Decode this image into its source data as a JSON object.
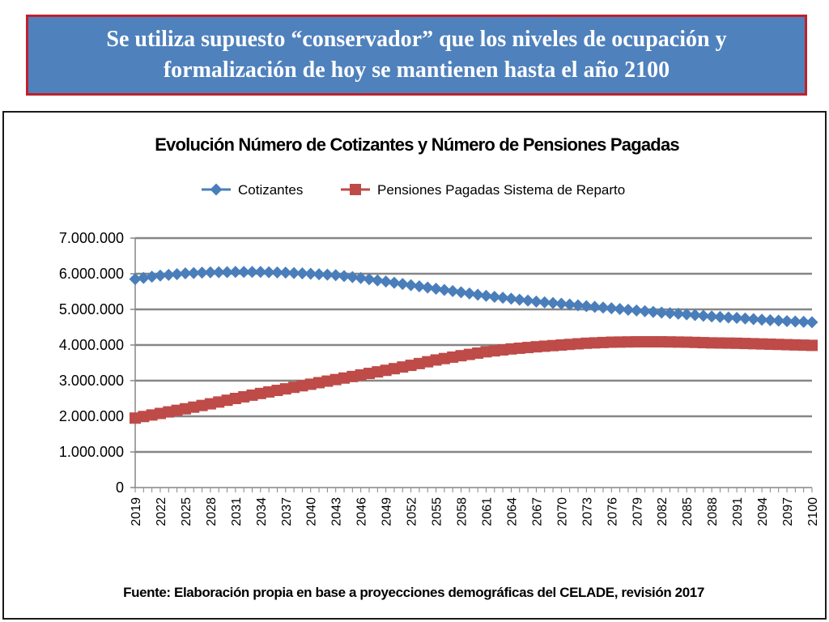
{
  "banner": {
    "text": "Se utiliza supuesto “conservador” que los niveles de ocupación y formalización de hoy se mantienen hasta el año 2100"
  },
  "chart_data": {
    "type": "line",
    "title": "Evolución Número de Cotizantes y Número de Pensiones Pagadas",
    "source": "Fuente: Elaboración propia en base a proyecciones demográficas del CELADE, revisión 2017",
    "ylim": [
      0,
      7000000
    ],
    "yticks": [
      0,
      1000000,
      2000000,
      3000000,
      4000000,
      5000000,
      6000000,
      7000000
    ],
    "ytick_labels": [
      "0",
      "1.000.000",
      "2.000.000",
      "3.000.000",
      "4.000.000",
      "5.000.000",
      "6.000.000",
      "7.000.000"
    ],
    "xlim": [
      2019,
      2100
    ],
    "xticks": [
      2019,
      2022,
      2025,
      2028,
      2031,
      2034,
      2037,
      2040,
      2043,
      2046,
      2049,
      2052,
      2055,
      2058,
      2061,
      2064,
      2067,
      2070,
      2073,
      2076,
      2079,
      2082,
      2085,
      2088,
      2091,
      2094,
      2097,
      2100
    ],
    "grid": true,
    "legend_position": "top",
    "series": [
      {
        "name": "Cotizantes",
        "color": "#4a7ebb",
        "marker": "diamond",
        "x": [
          2019,
          2022,
          2025,
          2028,
          2031,
          2034,
          2037,
          2040,
          2043,
          2046,
          2049,
          2052,
          2055,
          2058,
          2061,
          2064,
          2067,
          2070,
          2073,
          2076,
          2079,
          2082,
          2085,
          2088,
          2091,
          2094,
          2097,
          2100
        ],
        "values": [
          5850000,
          5950000,
          6010000,
          6040000,
          6050000,
          6050000,
          6030000,
          6000000,
          5960000,
          5880000,
          5780000,
          5680000,
          5580000,
          5480000,
          5380000,
          5300000,
          5220000,
          5160000,
          5090000,
          5030000,
          4970000,
          4910000,
          4860000,
          4800000,
          4760000,
          4710000,
          4670000,
          4640000
        ]
      },
      {
        "name": "Pensiones Pagadas Sistema de Reparto",
        "color": "#be4b48",
        "marker": "square",
        "x": [
          2019,
          2022,
          2025,
          2028,
          2031,
          2034,
          2037,
          2040,
          2043,
          2046,
          2049,
          2052,
          2055,
          2058,
          2061,
          2064,
          2067,
          2070,
          2073,
          2076,
          2079,
          2082,
          2085,
          2088,
          2091,
          2094,
          2097,
          2100
        ],
        "values": [
          1950000,
          2080000,
          2210000,
          2350000,
          2500000,
          2640000,
          2770000,
          2900000,
          3030000,
          3160000,
          3290000,
          3430000,
          3580000,
          3700000,
          3810000,
          3890000,
          3950000,
          4000000,
          4050000,
          4080000,
          4090000,
          4090000,
          4080000,
          4060000,
          4050000,
          4030000,
          4010000,
          3990000
        ]
      }
    ]
  }
}
